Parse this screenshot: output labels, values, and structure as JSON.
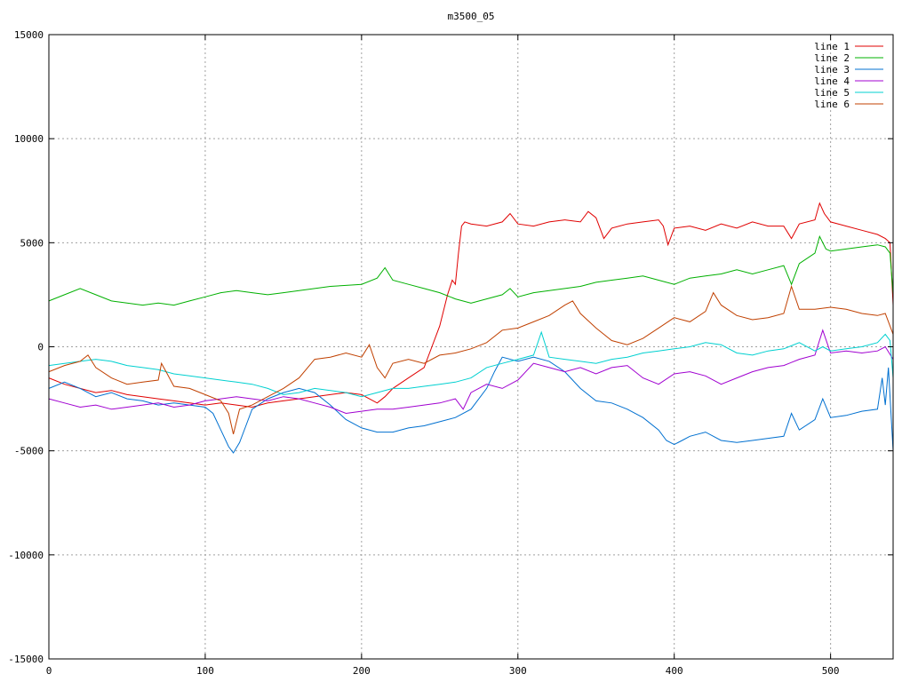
{
  "chart_data": {
    "type": "line",
    "title": "m3500_05",
    "xlabel": "",
    "ylabel": "",
    "xlim": [
      0,
      540
    ],
    "ylim": [
      -15000,
      15000
    ],
    "xticks": [
      0,
      100,
      200,
      300,
      400,
      500
    ],
    "yticks": [
      -15000,
      -10000,
      -5000,
      0,
      5000,
      10000,
      15000
    ],
    "grid": true,
    "legend_position": "top-right",
    "series": [
      {
        "name": "line 1",
        "color": "#e00000",
        "x": [
          0,
          10,
          20,
          30,
          40,
          50,
          60,
          70,
          80,
          90,
          100,
          110,
          120,
          130,
          140,
          150,
          160,
          170,
          180,
          190,
          200,
          205,
          210,
          215,
          220,
          230,
          240,
          245,
          250,
          255,
          258,
          260,
          262,
          264,
          266,
          270,
          280,
          290,
          295,
          300,
          310,
          320,
          330,
          340,
          345,
          350,
          355,
          360,
          370,
          380,
          390,
          393,
          396,
          400,
          410,
          420,
          430,
          440,
          450,
          460,
          470,
          475,
          480,
          490,
          493,
          496,
          500,
          510,
          520,
          530,
          535,
          538,
          540
        ],
        "y": [
          -1500,
          -1800,
          -2000,
          -2200,
          -2100,
          -2300,
          -2400,
          -2500,
          -2600,
          -2700,
          -2800,
          -2700,
          -2800,
          -2900,
          -2700,
          -2600,
          -2500,
          -2400,
          -2300,
          -2200,
          -2300,
          -2500,
          -2700,
          -2400,
          -2000,
          -1500,
          -1000,
          0,
          1000,
          2500,
          3200,
          3000,
          4500,
          5800,
          6000,
          5900,
          5800,
          6000,
          6400,
          5900,
          5800,
          6000,
          6100,
          6000,
          6500,
          6200,
          5200,
          5700,
          5900,
          6000,
          6100,
          5800,
          4900,
          5700,
          5800,
          5600,
          5900,
          5700,
          6000,
          5800,
          5800,
          5200,
          5900,
          6100,
          6900,
          6400,
          6000,
          5800,
          5600,
          5400,
          5200,
          5000,
          2000
        ]
      },
      {
        "name": "line 2",
        "color": "#00b000",
        "x": [
          0,
          10,
          20,
          30,
          40,
          50,
          60,
          70,
          80,
          90,
          100,
          110,
          120,
          130,
          140,
          150,
          160,
          170,
          180,
          190,
          200,
          210,
          215,
          220,
          230,
          240,
          250,
          260,
          270,
          280,
          290,
          295,
          300,
          310,
          320,
          330,
          340,
          350,
          360,
          370,
          380,
          390,
          400,
          410,
          420,
          430,
          440,
          450,
          460,
          470,
          475,
          480,
          490,
          493,
          497,
          500,
          510,
          520,
          530,
          535,
          538,
          540
        ],
        "y": [
          2200,
          2500,
          2800,
          2500,
          2200,
          2100,
          2000,
          2100,
          2000,
          2200,
          2400,
          2600,
          2700,
          2600,
          2500,
          2600,
          2700,
          2800,
          2900,
          2950,
          3000,
          3300,
          3800,
          3200,
          3000,
          2800,
          2600,
          2300,
          2100,
          2300,
          2500,
          2800,
          2400,
          2600,
          2700,
          2800,
          2900,
          3100,
          3200,
          3300,
          3400,
          3200,
          3000,
          3300,
          3400,
          3500,
          3700,
          3500,
          3700,
          3900,
          3000,
          4000,
          4500,
          5300,
          4700,
          4600,
          4700,
          4800,
          4900,
          4800,
          4500,
          2500
        ]
      },
      {
        "name": "line 3",
        "color": "#0070d0",
        "x": [
          0,
          10,
          20,
          30,
          40,
          50,
          60,
          70,
          80,
          90,
          100,
          105,
          110,
          115,
          118,
          122,
          126,
          130,
          140,
          150,
          160,
          170,
          180,
          190,
          200,
          210,
          220,
          230,
          240,
          250,
          260,
          270,
          280,
          285,
          290,
          300,
          310,
          320,
          330,
          340,
          350,
          360,
          370,
          380,
          390,
          395,
          400,
          405,
          410,
          420,
          430,
          440,
          450,
          460,
          470,
          475,
          480,
          490,
          495,
          500,
          510,
          520,
          530,
          533,
          535,
          537,
          540
        ],
        "y": [
          -2000,
          -1700,
          -2000,
          -2400,
          -2200,
          -2500,
          -2600,
          -2800,
          -2700,
          -2800,
          -2900,
          -3200,
          -4000,
          -4800,
          -5100,
          -4600,
          -3800,
          -3000,
          -2500,
          -2200,
          -2000,
          -2200,
          -2800,
          -3500,
          -3900,
          -4100,
          -4100,
          -3900,
          -3800,
          -3600,
          -3400,
          -3000,
          -2000,
          -1200,
          -500,
          -700,
          -500,
          -700,
          -1200,
          -2000,
          -2600,
          -2700,
          -3000,
          -3400,
          -4000,
          -4500,
          -4700,
          -4500,
          -4300,
          -4100,
          -4500,
          -4600,
          -4500,
          -4400,
          -4300,
          -3200,
          -4000,
          -3500,
          -2500,
          -3400,
          -3300,
          -3100,
          -3000,
          -1500,
          -2800,
          -1000,
          -5000
        ]
      },
      {
        "name": "line 4",
        "color": "#a000d0",
        "x": [
          0,
          10,
          20,
          30,
          40,
          50,
          60,
          70,
          80,
          90,
          100,
          110,
          120,
          130,
          140,
          150,
          160,
          170,
          180,
          190,
          200,
          210,
          220,
          230,
          240,
          250,
          260,
          265,
          270,
          280,
          290,
          300,
          310,
          320,
          330,
          340,
          350,
          360,
          370,
          380,
          390,
          400,
          410,
          420,
          430,
          440,
          450,
          460,
          470,
          480,
          490,
          495,
          500,
          510,
          520,
          530,
          535,
          540
        ],
        "y": [
          -2500,
          -2700,
          -2900,
          -2800,
          -3000,
          -2900,
          -2800,
          -2700,
          -2900,
          -2800,
          -2600,
          -2500,
          -2400,
          -2500,
          -2600,
          -2400,
          -2500,
          -2700,
          -2900,
          -3200,
          -3100,
          -3000,
          -3000,
          -2900,
          -2800,
          -2700,
          -2500,
          -3000,
          -2200,
          -1800,
          -2000,
          -1600,
          -800,
          -1000,
          -1200,
          -1000,
          -1300,
          -1000,
          -900,
          -1500,
          -1800,
          -1300,
          -1200,
          -1400,
          -1800,
          -1500,
          -1200,
          -1000,
          -900,
          -600,
          -400,
          800,
          -300,
          -200,
          -300,
          -200,
          0,
          -600
        ]
      },
      {
        "name": "line 5",
        "color": "#00d0d0",
        "x": [
          0,
          10,
          20,
          30,
          40,
          50,
          60,
          70,
          80,
          90,
          100,
          110,
          120,
          130,
          140,
          150,
          160,
          170,
          180,
          190,
          200,
          210,
          220,
          230,
          240,
          250,
          260,
          270,
          280,
          290,
          300,
          310,
          315,
          320,
          330,
          340,
          350,
          360,
          370,
          380,
          390,
          400,
          410,
          420,
          430,
          440,
          450,
          460,
          470,
          480,
          490,
          495,
          500,
          510,
          520,
          530,
          535,
          538,
          540
        ],
        "y": [
          -900,
          -800,
          -700,
          -600,
          -700,
          -900,
          -1000,
          -1100,
          -1300,
          -1400,
          -1500,
          -1600,
          -1700,
          -1800,
          -2000,
          -2300,
          -2200,
          -2000,
          -2100,
          -2200,
          -2400,
          -2200,
          -2000,
          -2000,
          -1900,
          -1800,
          -1700,
          -1500,
          -1000,
          -800,
          -600,
          -400,
          700,
          -500,
          -600,
          -700,
          -800,
          -600,
          -500,
          -300,
          -200,
          -100,
          0,
          200,
          100,
          -300,
          -400,
          -200,
          -100,
          200,
          -200,
          0,
          -200,
          -100,
          0,
          200,
          600,
          300,
          -1500
        ]
      },
      {
        "name": "line 6",
        "color": "#c04000",
        "x": [
          0,
          10,
          20,
          25,
          30,
          40,
          50,
          60,
          70,
          72,
          75,
          80,
          90,
          100,
          110,
          115,
          118,
          122,
          130,
          140,
          150,
          160,
          170,
          180,
          190,
          200,
          205,
          210,
          215,
          220,
          230,
          240,
          250,
          260,
          270,
          280,
          290,
          300,
          310,
          320,
          330,
          335,
          340,
          350,
          360,
          370,
          380,
          390,
          400,
          410,
          420,
          425,
          430,
          440,
          450,
          460,
          470,
          475,
          480,
          490,
          500,
          510,
          520,
          530,
          535,
          538,
          540
        ],
        "y": [
          -1200,
          -900,
          -700,
          -400,
          -1000,
          -1500,
          -1800,
          -1700,
          -1600,
          -800,
          -1200,
          -1900,
          -2000,
          -2300,
          -2600,
          -3200,
          -4200,
          -3000,
          -2800,
          -2400,
          -2000,
          -1500,
          -600,
          -500,
          -300,
          -500,
          100,
          -1000,
          -1500,
          -800,
          -600,
          -800,
          -400,
          -300,
          -100,
          200,
          800,
          900,
          1200,
          1500,
          2000,
          2200,
          1600,
          900,
          300,
          100,
          400,
          900,
          1400,
          1200,
          1700,
          2600,
          2000,
          1500,
          1300,
          1400,
          1600,
          2900,
          1800,
          1800,
          1900,
          1800,
          1600,
          1500,
          1600,
          1000,
          600
        ]
      }
    ]
  }
}
